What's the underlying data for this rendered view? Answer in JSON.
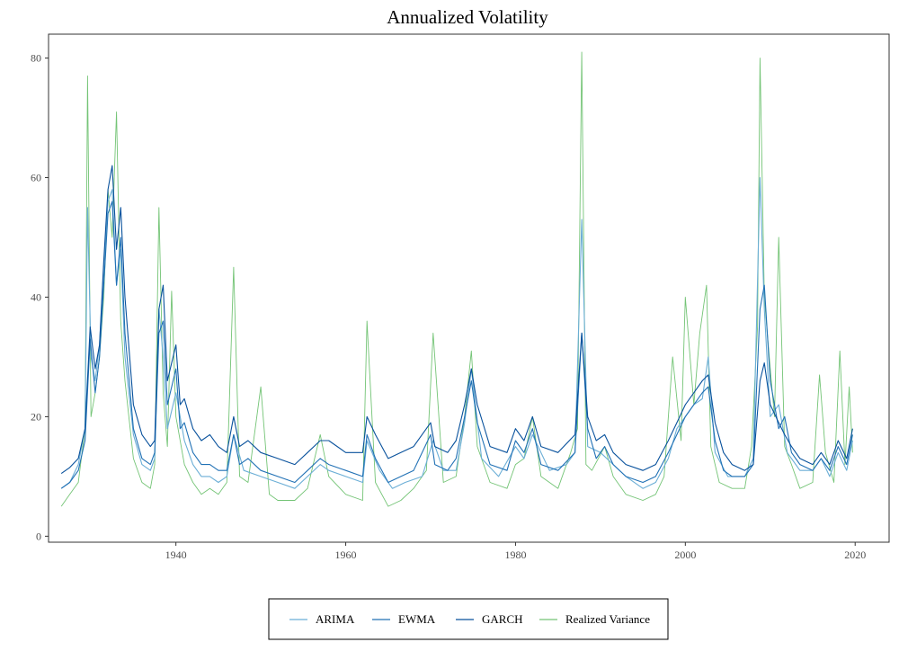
{
  "chart_data": {
    "type": "line",
    "title": "Annualized Volatility",
    "xlabel": "",
    "ylabel": "",
    "xlim": [
      1925,
      2024
    ],
    "ylim": [
      -1,
      84
    ],
    "xticks": [
      1940,
      1960,
      1980,
      2000,
      2020
    ],
    "yticks": [
      0,
      20,
      40,
      60,
      80
    ],
    "grid": false,
    "legend_position": "bottom",
    "colors": {
      "ARIMA": "#6baed6",
      "EWMA": "#2171b5",
      "GARCH": "#08519c",
      "Realized Variance": "#74c476"
    },
    "series": [
      {
        "name": "GARCH",
        "x": [
          1926.5,
          1927.5,
          1928.5,
          1929.3,
          1929.9,
          1930.5,
          1931.0,
          1931.5,
          1932.0,
          1932.5,
          1933.0,
          1933.5,
          1934.0,
          1935.0,
          1936.0,
          1937.0,
          1937.5,
          1938.0,
          1938.5,
          1939.0,
          1940.0,
          1940.5,
          1941.0,
          1942.0,
          1943.0,
          1944.0,
          1945.0,
          1946.0,
          1946.8,
          1947.5,
          1948.5,
          1950.0,
          1952.0,
          1954.0,
          1955.5,
          1957.0,
          1958.0,
          1960.0,
          1962.0,
          1962.5,
          1963.5,
          1965.0,
          1966.5,
          1968.0,
          1970.0,
          1970.5,
          1972.0,
          1973.0,
          1974.0,
          1974.8,
          1975.5,
          1977.0,
          1979.0,
          1980.0,
          1981.0,
          1982.0,
          1983.0,
          1985.0,
          1987.0,
          1987.8,
          1988.5,
          1989.5,
          1990.5,
          1991.5,
          1993.0,
          1995.0,
          1996.5,
          1998.0,
          1999.0,
          2000.0,
          2001.0,
          2002.0,
          2002.7,
          2003.5,
          2004.5,
          2005.5,
          2007.0,
          2008.0,
          2008.8,
          2009.3,
          2010.0,
          2011.0,
          2011.7,
          2012.5,
          2013.5,
          2015.0,
          2016.0,
          2017.0,
          2018.0,
          2019.0,
          2019.7
        ],
        "y": [
          10.5,
          11.5,
          13,
          18,
          35,
          28,
          32,
          46,
          58,
          62,
          48,
          55,
          40,
          22,
          17,
          15,
          16,
          38,
          42,
          26,
          32,
          22,
          23,
          18,
          16,
          17,
          15,
          14,
          20,
          15,
          16,
          14,
          13,
          12,
          14,
          16,
          16,
          14,
          14,
          20,
          17,
          13,
          14,
          15,
          19,
          15,
          14,
          16,
          22,
          28,
          22,
          15,
          14,
          18,
          16,
          20,
          15,
          14,
          17,
          34,
          20,
          16,
          17,
          14,
          12,
          11,
          12,
          16,
          19,
          22,
          24,
          26,
          27,
          19,
          14,
          12,
          11,
          12,
          26,
          29,
          22,
          19,
          17,
          15,
          13,
          12,
          14,
          12,
          16,
          13,
          18
        ]
      },
      {
        "name": "EWMA",
        "x": [
          1926.5,
          1927.5,
          1928.5,
          1929.3,
          1929.9,
          1930.5,
          1931.0,
          1931.5,
          1932.0,
          1932.5,
          1933.0,
          1933.5,
          1934.0,
          1935.0,
          1936.0,
          1937.0,
          1937.5,
          1938.0,
          1938.5,
          1939.0,
          1940.0,
          1940.5,
          1941.0,
          1942.0,
          1943.0,
          1944.0,
          1945.0,
          1946.0,
          1946.8,
          1947.5,
          1948.5,
          1950.0,
          1952.0,
          1954.0,
          1955.5,
          1957.0,
          1958.0,
          1960.0,
          1962.0,
          1962.5,
          1963.5,
          1965.0,
          1966.5,
          1968.0,
          1970.0,
          1970.5,
          1972.0,
          1973.0,
          1974.0,
          1974.8,
          1975.5,
          1977.0,
          1979.0,
          1980.0,
          1981.0,
          1982.0,
          1983.0,
          1985.0,
          1987.0,
          1987.8,
          1988.5,
          1989.5,
          1990.5,
          1991.5,
          1993.0,
          1995.0,
          1996.5,
          1998.0,
          1999.0,
          2000.0,
          2001.0,
          2002.0,
          2002.7,
          2003.5,
          2004.5,
          2005.5,
          2007.0,
          2008.0,
          2008.8,
          2009.3,
          2010.0,
          2011.0,
          2011.7,
          2012.5,
          2013.5,
          2015.0,
          2016.0,
          2017.0,
          2018.0,
          2019.0,
          2019.7
        ],
        "y": [
          8,
          9,
          11,
          16,
          33,
          24,
          30,
          42,
          54,
          56,
          42,
          50,
          34,
          18,
          13,
          12,
          14,
          34,
          36,
          22,
          28,
          18,
          19,
          14,
          12,
          12,
          11,
          11,
          17,
          12,
          13,
          11,
          10,
          9,
          11,
          13,
          12,
          11,
          10,
          17,
          13,
          9,
          10,
          11,
          17,
          12,
          11,
          13,
          20,
          26,
          19,
          12,
          11,
          16,
          14,
          18,
          12,
          11,
          14,
          34,
          18,
          13,
          15,
          12,
          10,
          9,
          10,
          14,
          17,
          20,
          22,
          24,
          25,
          16,
          11,
          10,
          10,
          12,
          38,
          42,
          26,
          18,
          20,
          14,
          12,
          11,
          13,
          11,
          15,
          12,
          17
        ]
      },
      {
        "name": "ARIMA",
        "x": [
          1926.5,
          1927.5,
          1928.5,
          1929.3,
          1929.6,
          1930.0,
          1930.5,
          1931.0,
          1931.5,
          1932.0,
          1932.5,
          1933.0,
          1933.5,
          1934.0,
          1935.0,
          1936.0,
          1937.0,
          1937.5,
          1938.0,
          1938.5,
          1939.0,
          1940.0,
          1941.0,
          1942.0,
          1943.0,
          1944.0,
          1945.0,
          1946.0,
          1946.8,
          1948.0,
          1950.0,
          1952.0,
          1954.0,
          1955.5,
          1957.0,
          1958.0,
          1960.0,
          1962.0,
          1962.5,
          1964.0,
          1965.5,
          1967.0,
          1969.0,
          1970.3,
          1971.5,
          1973.0,
          1974.0,
          1974.8,
          1976.0,
          1978.0,
          1980.0,
          1981.0,
          1982.0,
          1984.0,
          1986.0,
          1987.0,
          1987.8,
          1988.5,
          1990.0,
          1991.5,
          1993.0,
          1995.0,
          1996.5,
          1998.0,
          1999.0,
          2000.0,
          2001.0,
          2002.0,
          2002.7,
          2003.5,
          2005.0,
          2007.0,
          2008.0,
          2008.8,
          2009.3,
          2010.0,
          2011.0,
          2012.0,
          2013.5,
          2015.0,
          2016.0,
          2017.0,
          2018.0,
          2019.0,
          2019.7
        ],
        "y": [
          8,
          9,
          12,
          18,
          55,
          30,
          26,
          32,
          45,
          56,
          58,
          42,
          48,
          30,
          17,
          12,
          11,
          13,
          38,
          30,
          18,
          24,
          16,
          12,
          10,
          10,
          9,
          10,
          17,
          11,
          10,
          9,
          8,
          10,
          12,
          11,
          10,
          9,
          16,
          11,
          8,
          9,
          10,
          16,
          11,
          11,
          19,
          28,
          13,
          10,
          15,
          13,
          17,
          11,
          12,
          14,
          53,
          15,
          14,
          12,
          10,
          8,
          9,
          13,
          18,
          20,
          22,
          23,
          30,
          14,
          10,
          10,
          13,
          60,
          38,
          20,
          22,
          14,
          11,
          11,
          13,
          10,
          14,
          11,
          16
        ]
      },
      {
        "name": "Realized Variance",
        "x": [
          1926.5,
          1927.5,
          1928.5,
          1929.3,
          1929.6,
          1930.0,
          1930.5,
          1931.0,
          1931.5,
          1932.0,
          1932.5,
          1933.0,
          1933.5,
          1934.0,
          1935.0,
          1936.0,
          1937.0,
          1937.5,
          1938.0,
          1938.5,
          1939.0,
          1939.5,
          1940.0,
          1941.0,
          1942.0,
          1943.0,
          1944.0,
          1945.0,
          1946.0,
          1946.8,
          1947.5,
          1948.5,
          1950.0,
          1951.0,
          1952.0,
          1954.0,
          1955.5,
          1957.0,
          1958.0,
          1960.0,
          1962.0,
          1962.5,
          1963.5,
          1965.0,
          1966.5,
          1968.0,
          1969.5,
          1970.3,
          1971.5,
          1973.0,
          1974.0,
          1974.8,
          1975.5,
          1977.0,
          1979.0,
          1980.0,
          1981.0,
          1982.0,
          1983.0,
          1985.0,
          1986.5,
          1987.3,
          1987.8,
          1988.3,
          1989.0,
          1990.5,
          1991.5,
          1993.0,
          1995.0,
          1996.5,
          1997.5,
          1998.5,
          1999.5,
          2000.0,
          2001.0,
          2001.7,
          2002.5,
          2003.0,
          2004.0,
          2005.5,
          2007.0,
          2007.8,
          2008.5,
          2008.8,
          2009.3,
          2010.0,
          2010.5,
          2011.0,
          2011.7,
          2012.5,
          2013.5,
          2015.0,
          2015.8,
          2016.5,
          2017.5,
          2018.2,
          2018.8,
          2019.3,
          2019.7
        ],
        "y": [
          5,
          7,
          9,
          18,
          77,
          20,
          24,
          30,
          40,
          58,
          50,
          71,
          36,
          26,
          13,
          9,
          8,
          12,
          55,
          24,
          15,
          41,
          20,
          12,
          9,
          7,
          8,
          7,
          9,
          45,
          10,
          9,
          25,
          7,
          6,
          6,
          8,
          17,
          10,
          7,
          6,
          36,
          9,
          5,
          6,
          8,
          11,
          34,
          9,
          10,
          20,
          31,
          15,
          9,
          8,
          12,
          13,
          20,
          10,
          8,
          14,
          18,
          81,
          12,
          11,
          15,
          10,
          7,
          6,
          7,
          10,
          30,
          16,
          40,
          22,
          34,
          42,
          15,
          9,
          8,
          8,
          15,
          35,
          80,
          40,
          28,
          20,
          50,
          15,
          12,
          8,
          9,
          27,
          14,
          9,
          31,
          12,
          25,
          14
        ]
      }
    ]
  },
  "legend": {
    "items": [
      "ARIMA",
      "EWMA",
      "GARCH",
      "Realized Variance"
    ]
  }
}
